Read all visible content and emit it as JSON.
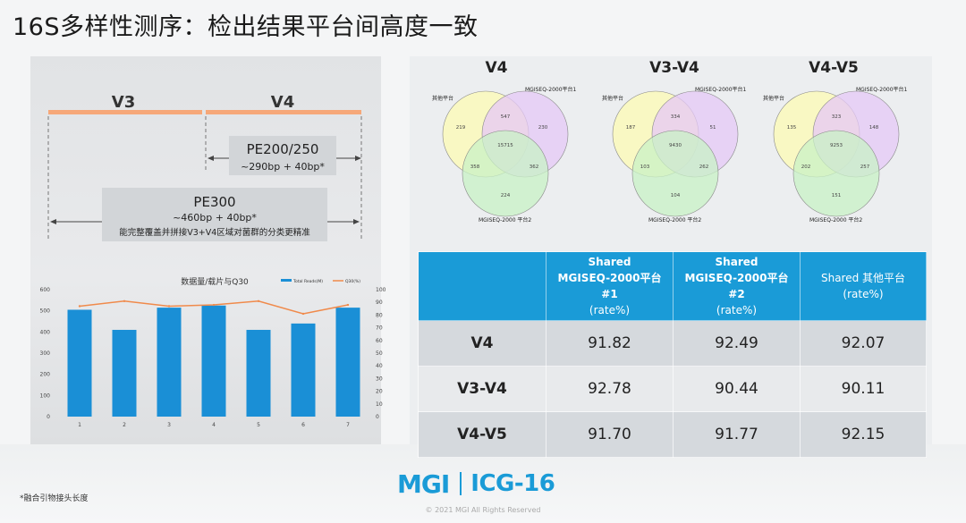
{
  "slide": {
    "title": "16S多样性测序：检出结果平台间高度一致",
    "footnote": "*融合引物接头长度",
    "copyright": "© 2021 MGI All Rights Reserved",
    "logo_left": "MGI",
    "logo_right": "ICG-16"
  },
  "region_diagram": {
    "region_v3": "V3",
    "region_v4": "V4",
    "pe200_title": "PE200/250",
    "pe200_sub": "~290bp + 40bp*",
    "pe300_title": "PE300",
    "pe300_sub": "~460bp + 40bp*",
    "pe300_note": "能完整覆盖并拼接V3+V4区域对菌群的分类更精准",
    "colors": {
      "bar": "#f6a879",
      "text": "#333333"
    }
  },
  "chart_data": {
    "type": "bar",
    "title": "数据量/载片与Q30",
    "categories": [
      "1",
      "2",
      "3",
      "4",
      "5",
      "6",
      "7"
    ],
    "series": [
      {
        "name": "Total Reads(M)",
        "type": "bar",
        "axis": "left",
        "color": "#1a8fd6",
        "values": [
          505,
          410,
          515,
          525,
          410,
          440,
          515
        ]
      },
      {
        "name": "Q30(%)",
        "type": "line",
        "axis": "right",
        "color": "#f08a4b",
        "values": [
          87,
          91,
          87,
          88,
          91,
          81,
          88
        ]
      }
    ],
    "ylim_left": [
      0,
      600
    ],
    "yticks_left": [
      "0",
      "100",
      "200",
      "300",
      "400",
      "500",
      "600"
    ],
    "ylim_right": [
      0,
      100
    ],
    "yticks_right": [
      "0",
      "10",
      "20",
      "30",
      "40",
      "50",
      "60",
      "70",
      "80",
      "90",
      "100"
    ],
    "legend_position": "top-right"
  },
  "venns": [
    {
      "title": "V4",
      "labels": {
        "a": "其他平台",
        "b": "MGISEQ-2000平台1",
        "c": "MGISEQ-2000 平台2"
      },
      "values": {
        "a_only": "219",
        "b_only": "230",
        "c_only": "224",
        "ab": "547",
        "ac": "358",
        "bc": "362",
        "abc": "15715"
      }
    },
    {
      "title": "V3-V4",
      "labels": {
        "a": "其他平台",
        "b": "MGISEQ-2000平台1",
        "c": "MGISEQ-2000 平台2"
      },
      "values": {
        "a_only": "187",
        "b_only": "51",
        "c_only": "104",
        "ab": "334",
        "ac": "103",
        "bc": "262",
        "abc": "9430"
      }
    },
    {
      "title": "V4-V5",
      "labels": {
        "a": "其他平台",
        "b": "MGISEQ-2000平台1",
        "c": "MGISEQ-2000 平台2"
      },
      "values": {
        "a_only": "135",
        "b_only": "148",
        "c_only": "151",
        "ab": "323",
        "ac": "202",
        "bc": "257",
        "abc": "9253"
      }
    }
  ],
  "table": {
    "headers": [
      {
        "line1": "Shared",
        "line2": "MGISEQ-2000平台#1",
        "line3": "(rate%)"
      },
      {
        "line1": "Shared",
        "line2": "MGISEQ-2000平台#2",
        "line3": "(rate%)"
      },
      {
        "line1": "Shared 其他平台",
        "line2": "",
        "line3": "(rate%)"
      }
    ],
    "rows": [
      {
        "label": "V4",
        "cells": [
          "91.82",
          "92.49",
          "92.07"
        ]
      },
      {
        "label": "V3-V4",
        "cells": [
          "92.78",
          "90.44",
          "90.11"
        ]
      },
      {
        "label": "V4-V5",
        "cells": [
          "91.70",
          "91.77",
          "92.15"
        ]
      }
    ]
  }
}
